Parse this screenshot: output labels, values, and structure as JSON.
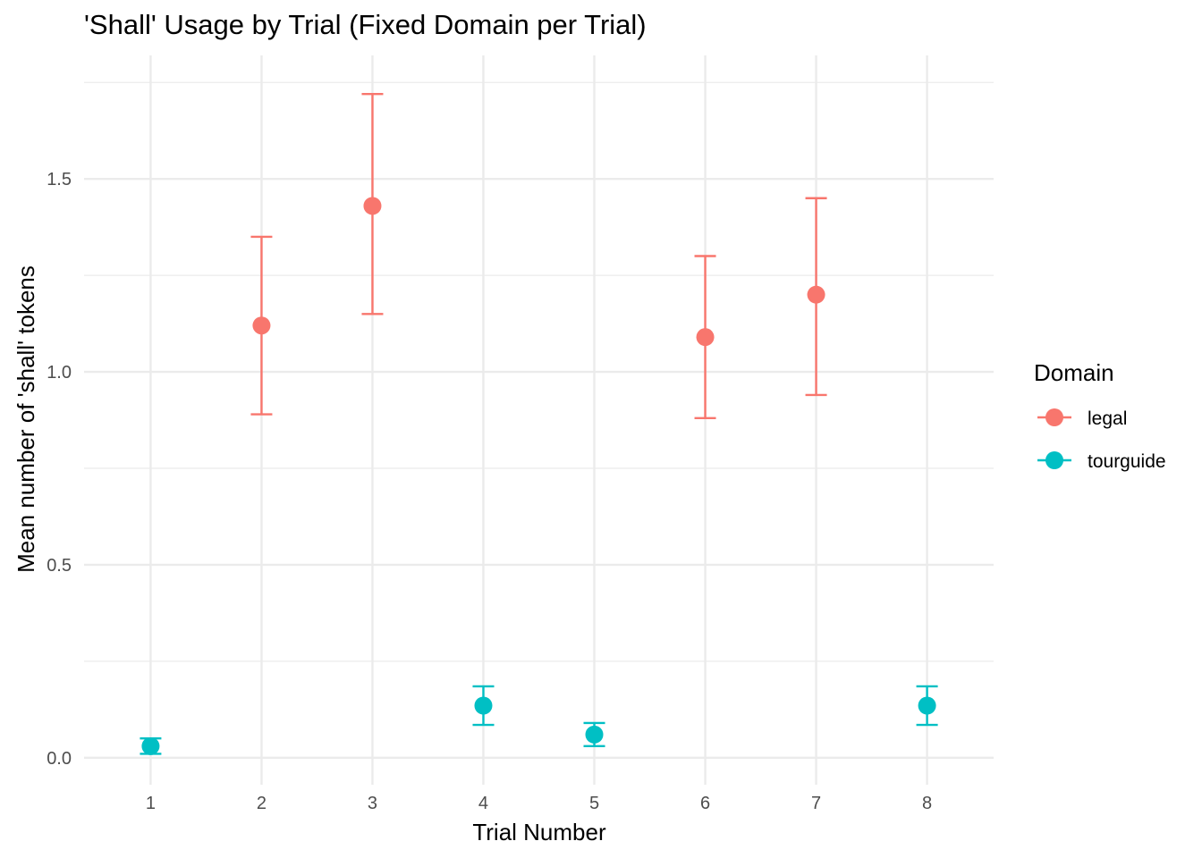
{
  "chart_data": {
    "type": "scatter",
    "title": "'Shall' Usage by Trial (Fixed Domain per Trial)",
    "xlabel": "Trial Number",
    "ylabel": "Mean number of 'shall' tokens",
    "x_ticks": [
      "1",
      "2",
      "3",
      "4",
      "5",
      "6",
      "7",
      "8"
    ],
    "y_ticks": [
      "0.0",
      "0.5",
      "1.0",
      "1.5"
    ],
    "xlim": [
      0.4,
      8.6
    ],
    "ylim": [
      -0.07,
      1.82
    ],
    "grid": true,
    "legend": {
      "title": "Domain",
      "position": "right"
    },
    "series": [
      {
        "name": "legal",
        "color": "#F8766D",
        "points": [
          {
            "x": 2,
            "y": 1.12,
            "lower": 0.89,
            "upper": 1.35
          },
          {
            "x": 3,
            "y": 1.43,
            "lower": 1.15,
            "upper": 1.72
          },
          {
            "x": 6,
            "y": 1.09,
            "lower": 0.88,
            "upper": 1.3
          },
          {
            "x": 7,
            "y": 1.2,
            "lower": 0.94,
            "upper": 1.45
          }
        ]
      },
      {
        "name": "tourguide",
        "color": "#00BFC4",
        "points": [
          {
            "x": 1,
            "y": 0.03,
            "lower": 0.01,
            "upper": 0.05
          },
          {
            "x": 4,
            "y": 0.135,
            "lower": 0.085,
            "upper": 0.185
          },
          {
            "x": 5,
            "y": 0.06,
            "lower": 0.03,
            "upper": 0.09
          },
          {
            "x": 8,
            "y": 0.135,
            "lower": 0.085,
            "upper": 0.185
          }
        ]
      }
    ]
  }
}
